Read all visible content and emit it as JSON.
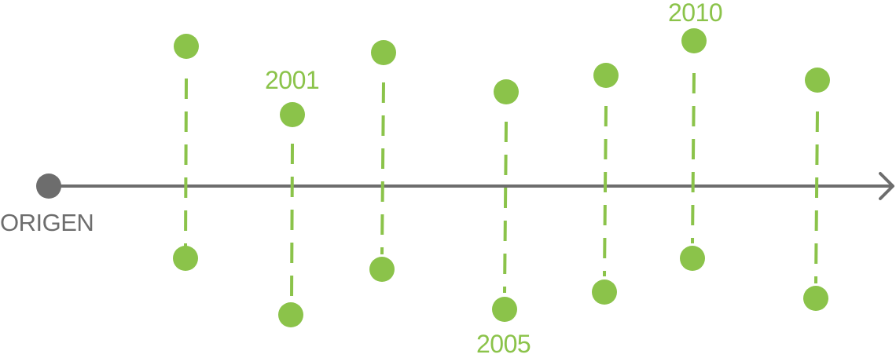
{
  "origin_label": "ORIGEN",
  "year_labels": {
    "first": "2001",
    "second": "2005",
    "third": "2010"
  },
  "colors": {
    "accent": "#8bc34a",
    "axis": "#6d6d6d"
  },
  "icons": {
    "origin": "origin-dot-icon",
    "arrow": "arrow-head-icon"
  }
}
